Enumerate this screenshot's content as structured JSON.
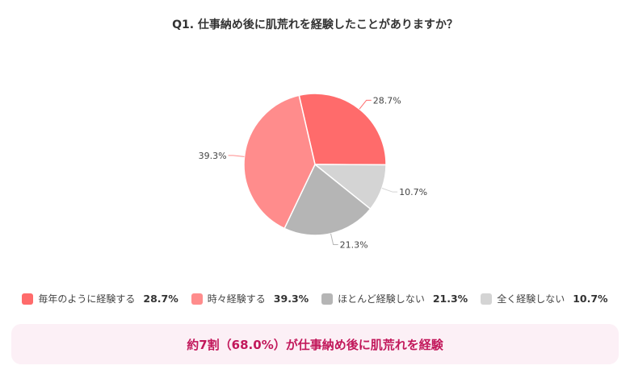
{
  "chart_data": {
    "type": "pie",
    "title": "Q1. 仕事納め後に肌荒れを経験したことがありますか？",
    "slices": [
      {
        "label": "毎年のように経験する",
        "value": 28.7,
        "display": "28.7%",
        "color": "#ff6b6b"
      },
      {
        "label": "ほとんど経験しない",
        "value": 21.3,
        "display": "21.3%",
        "color": "#b5b5b5",
        "order": 2
      },
      {
        "label": "全く経験しない",
        "value": 10.7,
        "display": "10.7%",
        "color": "#d4d4d4",
        "order": 1
      },
      {
        "label": "時々経験する",
        "value": 39.3,
        "display": "39.3%",
        "color": "#ff8c8c",
        "order": 3
      }
    ],
    "legend": [
      {
        "label": "毎年のように経験する",
        "display": "28.7%",
        "color": "#ff6b6b"
      },
      {
        "label": "時々経験する",
        "display": "39.3%",
        "color": "#ff8c8c"
      },
      {
        "label": "ほとんど経験しない",
        "display": "21.3%",
        "color": "#b5b5b5"
      },
      {
        "label": "全く経験しない",
        "display": "10.7%",
        "color": "#d4d4d4"
      }
    ],
    "legend_position": "bottom"
  },
  "summary": "約7割（68.0%）が仕事納め後に肌荒れを経験"
}
